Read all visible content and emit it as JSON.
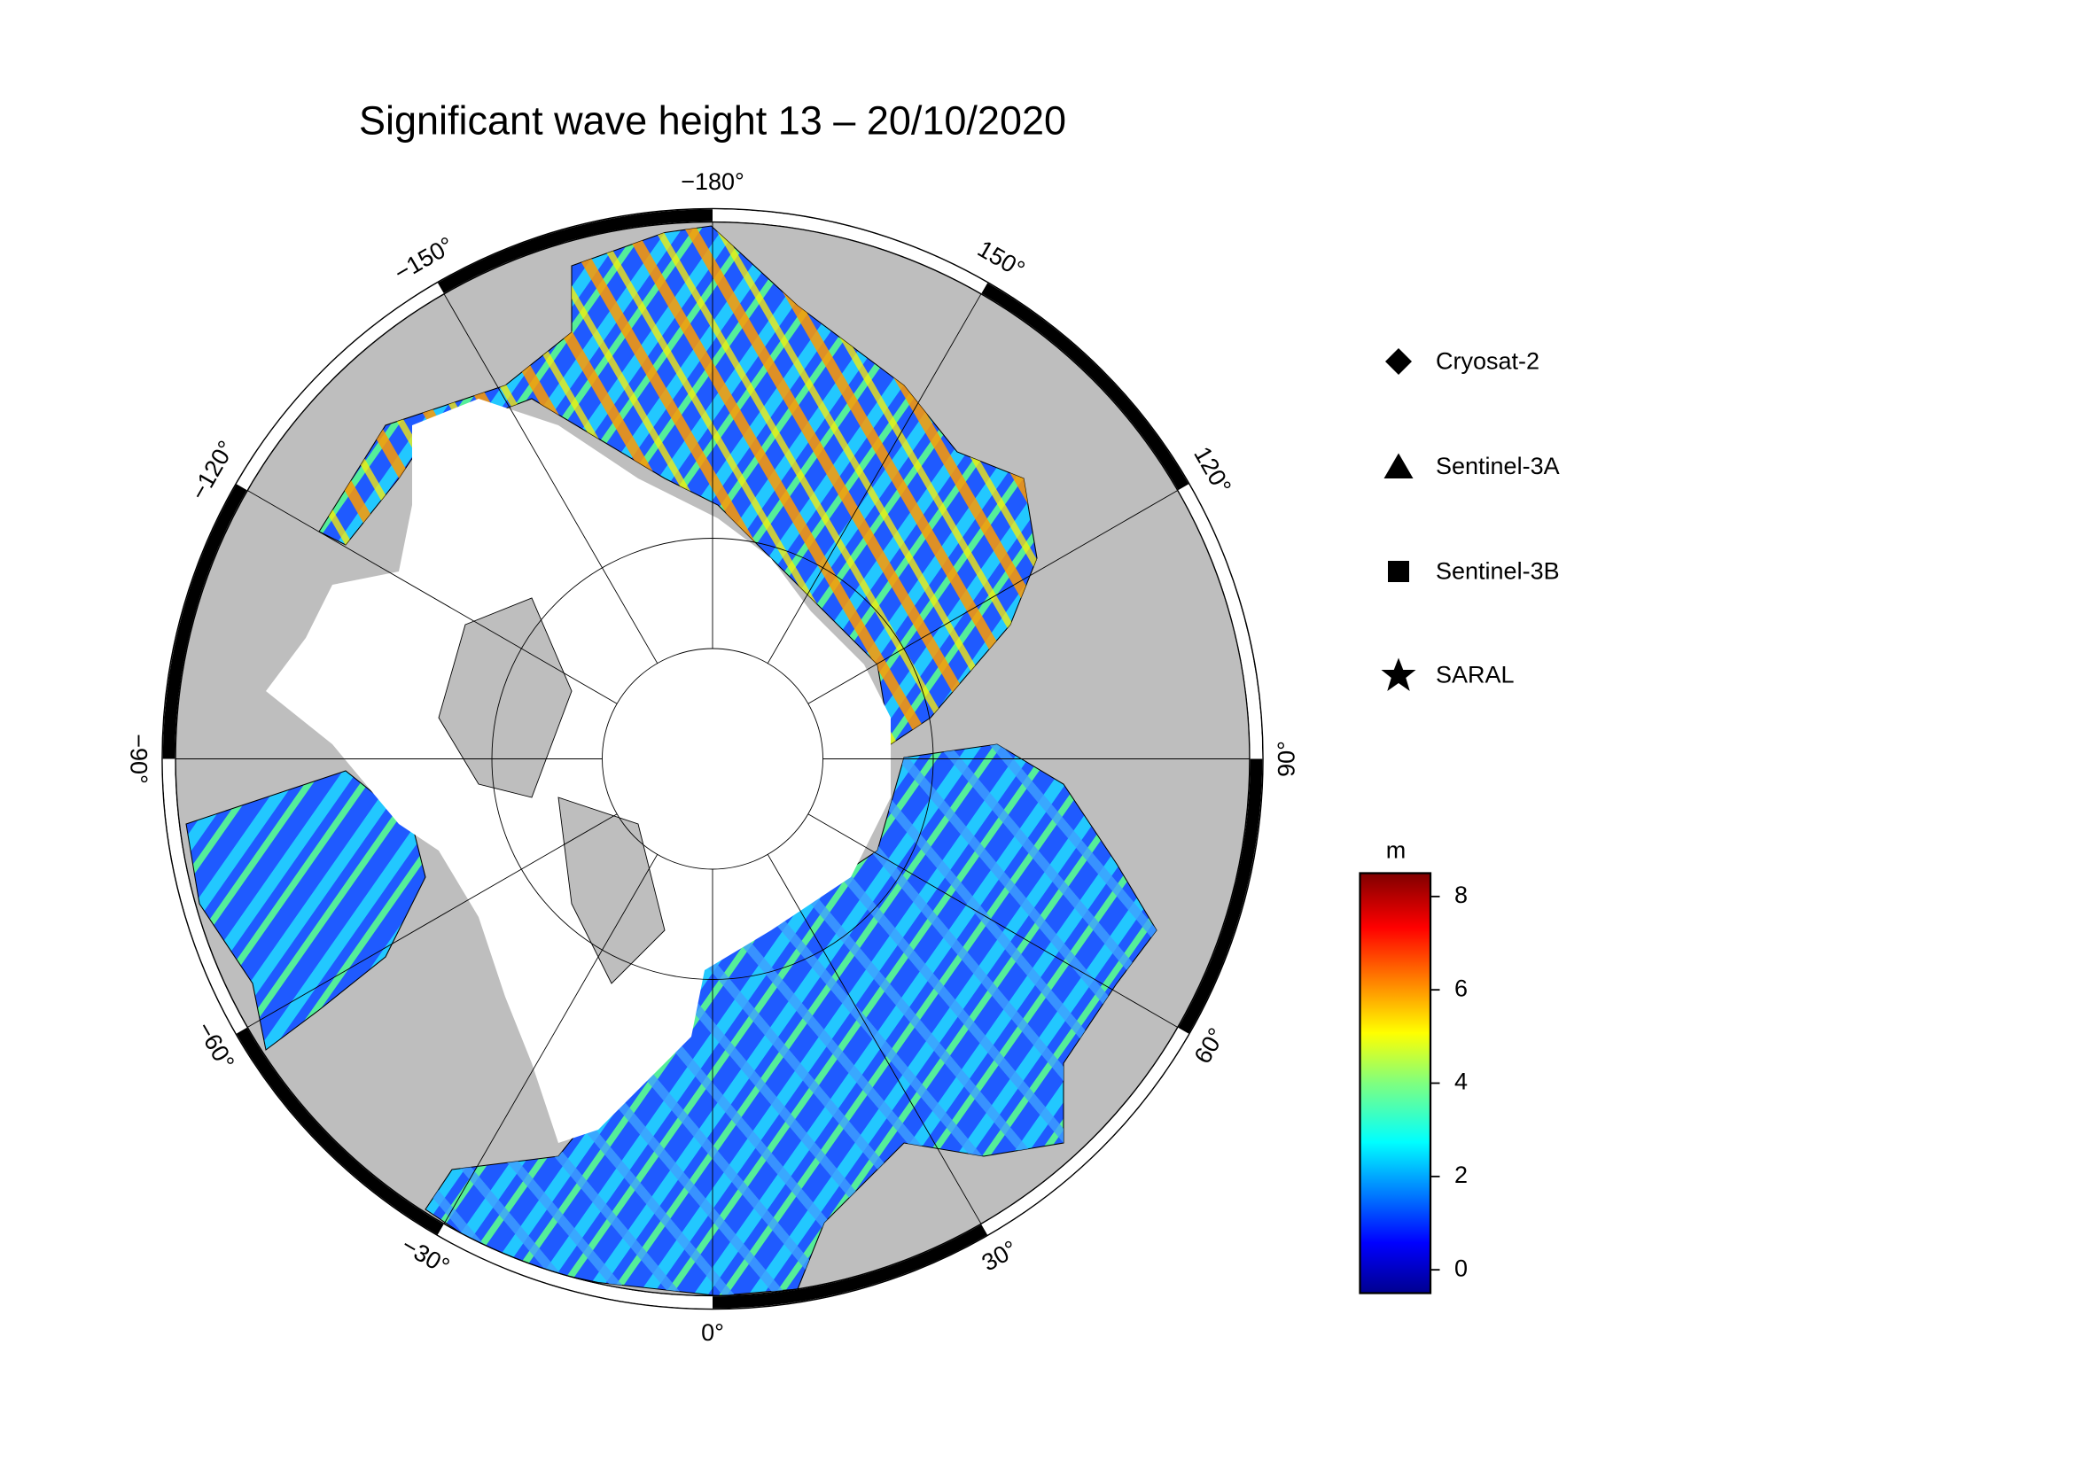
{
  "title": "Significant wave height 13 – 20/10/2020",
  "meridians": [
    {
      "value": -180,
      "label": "−180°"
    },
    {
      "value": -150,
      "label": "−150°"
    },
    {
      "value": -120,
      "label": "−120°"
    },
    {
      "value": -90,
      "label": "−90°"
    },
    {
      "value": -60,
      "label": "−60°"
    },
    {
      "value": -30,
      "label": "−30°"
    },
    {
      "value": 0,
      "label": "0°"
    },
    {
      "value": 30,
      "label": "30°"
    },
    {
      "value": 60,
      "label": "60°"
    },
    {
      "value": 90,
      "label": "90°"
    },
    {
      "value": 120,
      "label": "120°"
    },
    {
      "value": 150,
      "label": "150°"
    }
  ],
  "legend": [
    "Cryosat-2",
    "Sentinel-3A",
    "Sentinel-3B",
    "SARAL"
  ],
  "colorbar": {
    "label": "m",
    "lim": [
      -0.5,
      8.5
    ],
    "ticks": [
      0,
      2,
      4,
      6,
      8
    ]
  }
}
